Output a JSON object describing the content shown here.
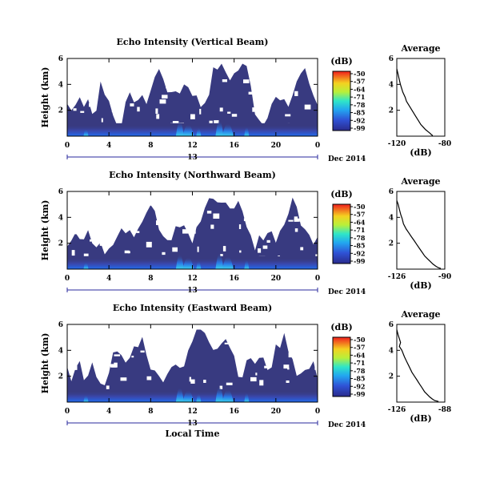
{
  "chart_data": [
    {
      "type": "heatmap",
      "title": "Echo Intensity (Vertical Beam)",
      "ylabel": "Height (km)",
      "yticks": [
        6,
        4,
        2
      ],
      "ylim": [
        0,
        6
      ],
      "xticks": [
        "0",
        "4",
        "8",
        "12",
        "16",
        "20",
        "0"
      ],
      "xlim": [
        0,
        24
      ],
      "day_label": "13",
      "date_label": "Dec 2014",
      "colorbar": {
        "unit": "(dB)",
        "ticks": [
          "-50",
          "-57",
          "-64",
          "-71",
          "-78",
          "-85",
          "-92",
          "-99"
        ]
      },
      "profile": {
        "title": "Average",
        "xlabel": "(dB)",
        "xticks": [
          "-120",
          "-80"
        ],
        "xlim": [
          -120,
          -80
        ],
        "yticks": [
          6,
          4,
          2
        ],
        "ylim": [
          0,
          6
        ],
        "x": [
          -120,
          -119,
          -118,
          -117,
          -116,
          -115,
          -113,
          -112,
          -110,
          -108,
          -106,
          -104,
          -102,
          -100,
          -98,
          -96,
          -94,
          -92,
          -91,
          -90
        ],
        "y": [
          5.2,
          4.8,
          4.4,
          4.0,
          3.7,
          3.4,
          3.0,
          2.7,
          2.4,
          2.1,
          1.8,
          1.5,
          1.2,
          0.9,
          0.7,
          0.5,
          0.35,
          0.2,
          0.1,
          0.05
        ]
      }
    },
    {
      "type": "heatmap",
      "title": "Echo Intensity (Northward Beam)",
      "ylabel": "Height (km)",
      "yticks": [
        6,
        4,
        2
      ],
      "ylim": [
        0,
        6
      ],
      "xticks": [
        "0",
        "4",
        "8",
        "12",
        "16",
        "20",
        "0"
      ],
      "xlim": [
        0,
        24
      ],
      "day_label": "13",
      "date_label": "Dec 2014",
      "colorbar": {
        "unit": "(dB)",
        "ticks": [
          "-50",
          "-57",
          "-64",
          "-71",
          "-78",
          "-85",
          "-92",
          "-99"
        ]
      },
      "profile": {
        "title": "Average",
        "xlabel": "(dB)",
        "xticks": [
          "-126",
          "-90"
        ],
        "xlim": [
          -126,
          -90
        ],
        "yticks": [
          6,
          4,
          2
        ],
        "ylim": [
          0,
          6
        ],
        "x": [
          -126,
          -125,
          -124,
          -123,
          -122,
          -121,
          -119,
          -117,
          -115,
          -113,
          -111,
          -109,
          -107,
          -105,
          -103,
          -101,
          -99,
          -97,
          -95,
          -93
        ],
        "y": [
          5.3,
          5.0,
          4.6,
          4.2,
          3.9,
          3.5,
          3.1,
          2.8,
          2.5,
          2.2,
          1.9,
          1.6,
          1.3,
          1.0,
          0.8,
          0.6,
          0.4,
          0.25,
          0.12,
          0.05
        ]
      }
    },
    {
      "type": "heatmap",
      "title": "Echo Intensity (Eastward Beam)",
      "ylabel": "Height (km)",
      "yticks": [
        6,
        4,
        2
      ],
      "ylim": [
        0,
        6
      ],
      "xticks": [
        "0",
        "4",
        "8",
        "12",
        "16",
        "20",
        "0"
      ],
      "xlim": [
        0,
        24
      ],
      "day_label": "13",
      "date_label": "Dec 2014",
      "xlabel": "Local Time",
      "colorbar": {
        "unit": "(dB)",
        "ticks": [
          "-50",
          "-57",
          "-64",
          "-71",
          "-78",
          "-85",
          "-92",
          "-99"
        ]
      },
      "profile": {
        "title": "Average",
        "xlabel": "(dB)",
        "xticks": [
          "-126",
          "-88"
        ],
        "xlim": [
          -126,
          -88
        ],
        "yticks": [
          6,
          4,
          2
        ],
        "ylim": [
          0,
          6
        ],
        "x": [
          -126,
          -125,
          -124,
          -123,
          -124,
          -122,
          -120,
          -118,
          -116,
          -114,
          -112,
          -110,
          -108,
          -106,
          -104,
          -102,
          -100,
          -98,
          -96,
          -93
        ],
        "y": [
          5.6,
          5.2,
          4.9,
          4.6,
          4.3,
          4.0,
          3.5,
          3.1,
          2.7,
          2.3,
          2.0,
          1.7,
          1.4,
          1.1,
          0.8,
          0.6,
          0.4,
          0.25,
          0.12,
          0.05
        ]
      }
    }
  ]
}
